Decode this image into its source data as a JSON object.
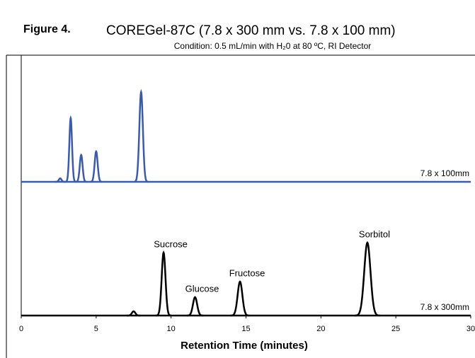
{
  "chart_data": {
    "type": "chromatogram",
    "figure_label": "Figure 4.",
    "title": "COREGel-87C (7.8 x 300 mm vs. 7.8 x 100 mm)",
    "subtitle": "Condition: 0.5 mL/min with H₂0 at 80 ºC, RI Detector",
    "x_label": "Retention Time (minutes)",
    "xlim": [
      0,
      30
    ],
    "xticks": [
      0,
      5,
      10,
      15,
      20,
      25,
      30
    ],
    "series": [
      {
        "name": "7.8 x 100mm",
        "color": "#3c5aa8",
        "x": [
          2.6,
          3.3,
          4.0,
          5.0,
          8.0
        ],
        "values": [
          5,
          90,
          38,
          43,
          127
        ],
        "labels": [
          null,
          null,
          null,
          null,
          null
        ]
      },
      {
        "name": "7.8 x 300mm",
        "color": "#000000",
        "x": [
          7.5,
          9.5,
          11.6,
          14.6,
          23.1
        ],
        "values": [
          6,
          89,
          26,
          48,
          103
        ],
        "labels": [
          null,
          "Sucrose",
          "Glucose",
          "Fructose",
          "Sorbitol"
        ]
      }
    ]
  }
}
